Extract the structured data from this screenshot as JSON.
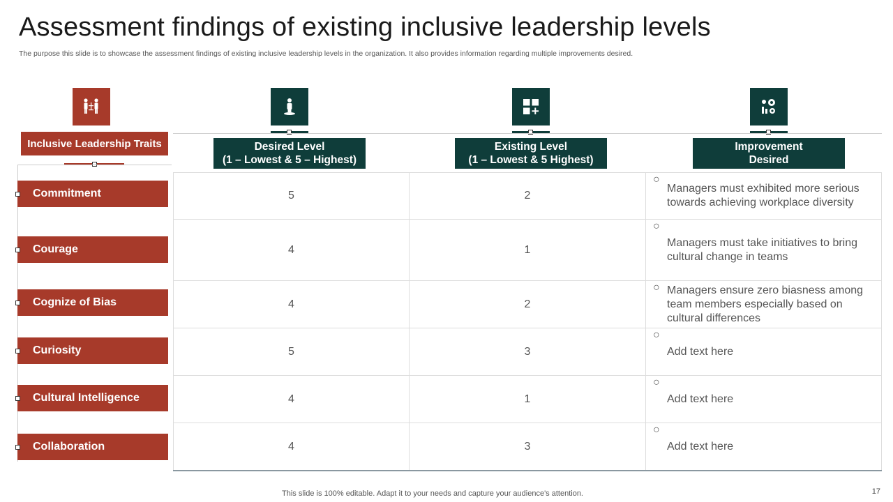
{
  "title": "Assessment  findings of existing inclusive leadership levels",
  "subtitle": "The purpose this slide is to showcase the assessment findings of existing inclusive leadership levels in the organization. It also provides information regarding multiple improvements desired.",
  "traits_header": "Inclusive Leadership Traits",
  "columns": [
    {
      "line1": "Desired Level",
      "line2": "(1 – Lowest & 5 – Highest)"
    },
    {
      "line1": "Existing Level",
      "line2": "(1 – Lowest & 5 Highest)"
    },
    {
      "line1": "Improvement",
      "line2": "Desired"
    }
  ],
  "icons": [
    "people-hierarchy-icon",
    "person-podium-icon",
    "grid-plus-icon",
    "gears-chart-icon"
  ],
  "rows": [
    {
      "trait": "Commitment",
      "desired": "5",
      "existing": "2",
      "improvement": "Managers must exhibited more serious towards achieving workplace diversity"
    },
    {
      "trait": "Courage",
      "desired": "4",
      "existing": "1",
      "improvement": "Managers must take initiatives to bring cultural  change in teams"
    },
    {
      "trait": "Cognize of Bias",
      "desired": "4",
      "existing": "2",
      "improvement": "Managers ensure zero biasness among team members especially based on cultural  differences"
    },
    {
      "trait": "Curiosity",
      "desired": "5",
      "existing": "3",
      "improvement": "Add text here"
    },
    {
      "trait": "Cultural Intelligence",
      "desired": "4",
      "existing": "1",
      "improvement": "Add text here"
    },
    {
      "trait": "Collaboration",
      "desired": "4",
      "existing": "3",
      "improvement": "Add text here"
    }
  ],
  "bullet_symbol": "○",
  "footer": "This slide is 100% editable. Adapt it to your needs and capture your audience's attention.",
  "page_number": "17",
  "colors": {
    "red": "#a73a2a",
    "teal": "#0f3d3a"
  }
}
